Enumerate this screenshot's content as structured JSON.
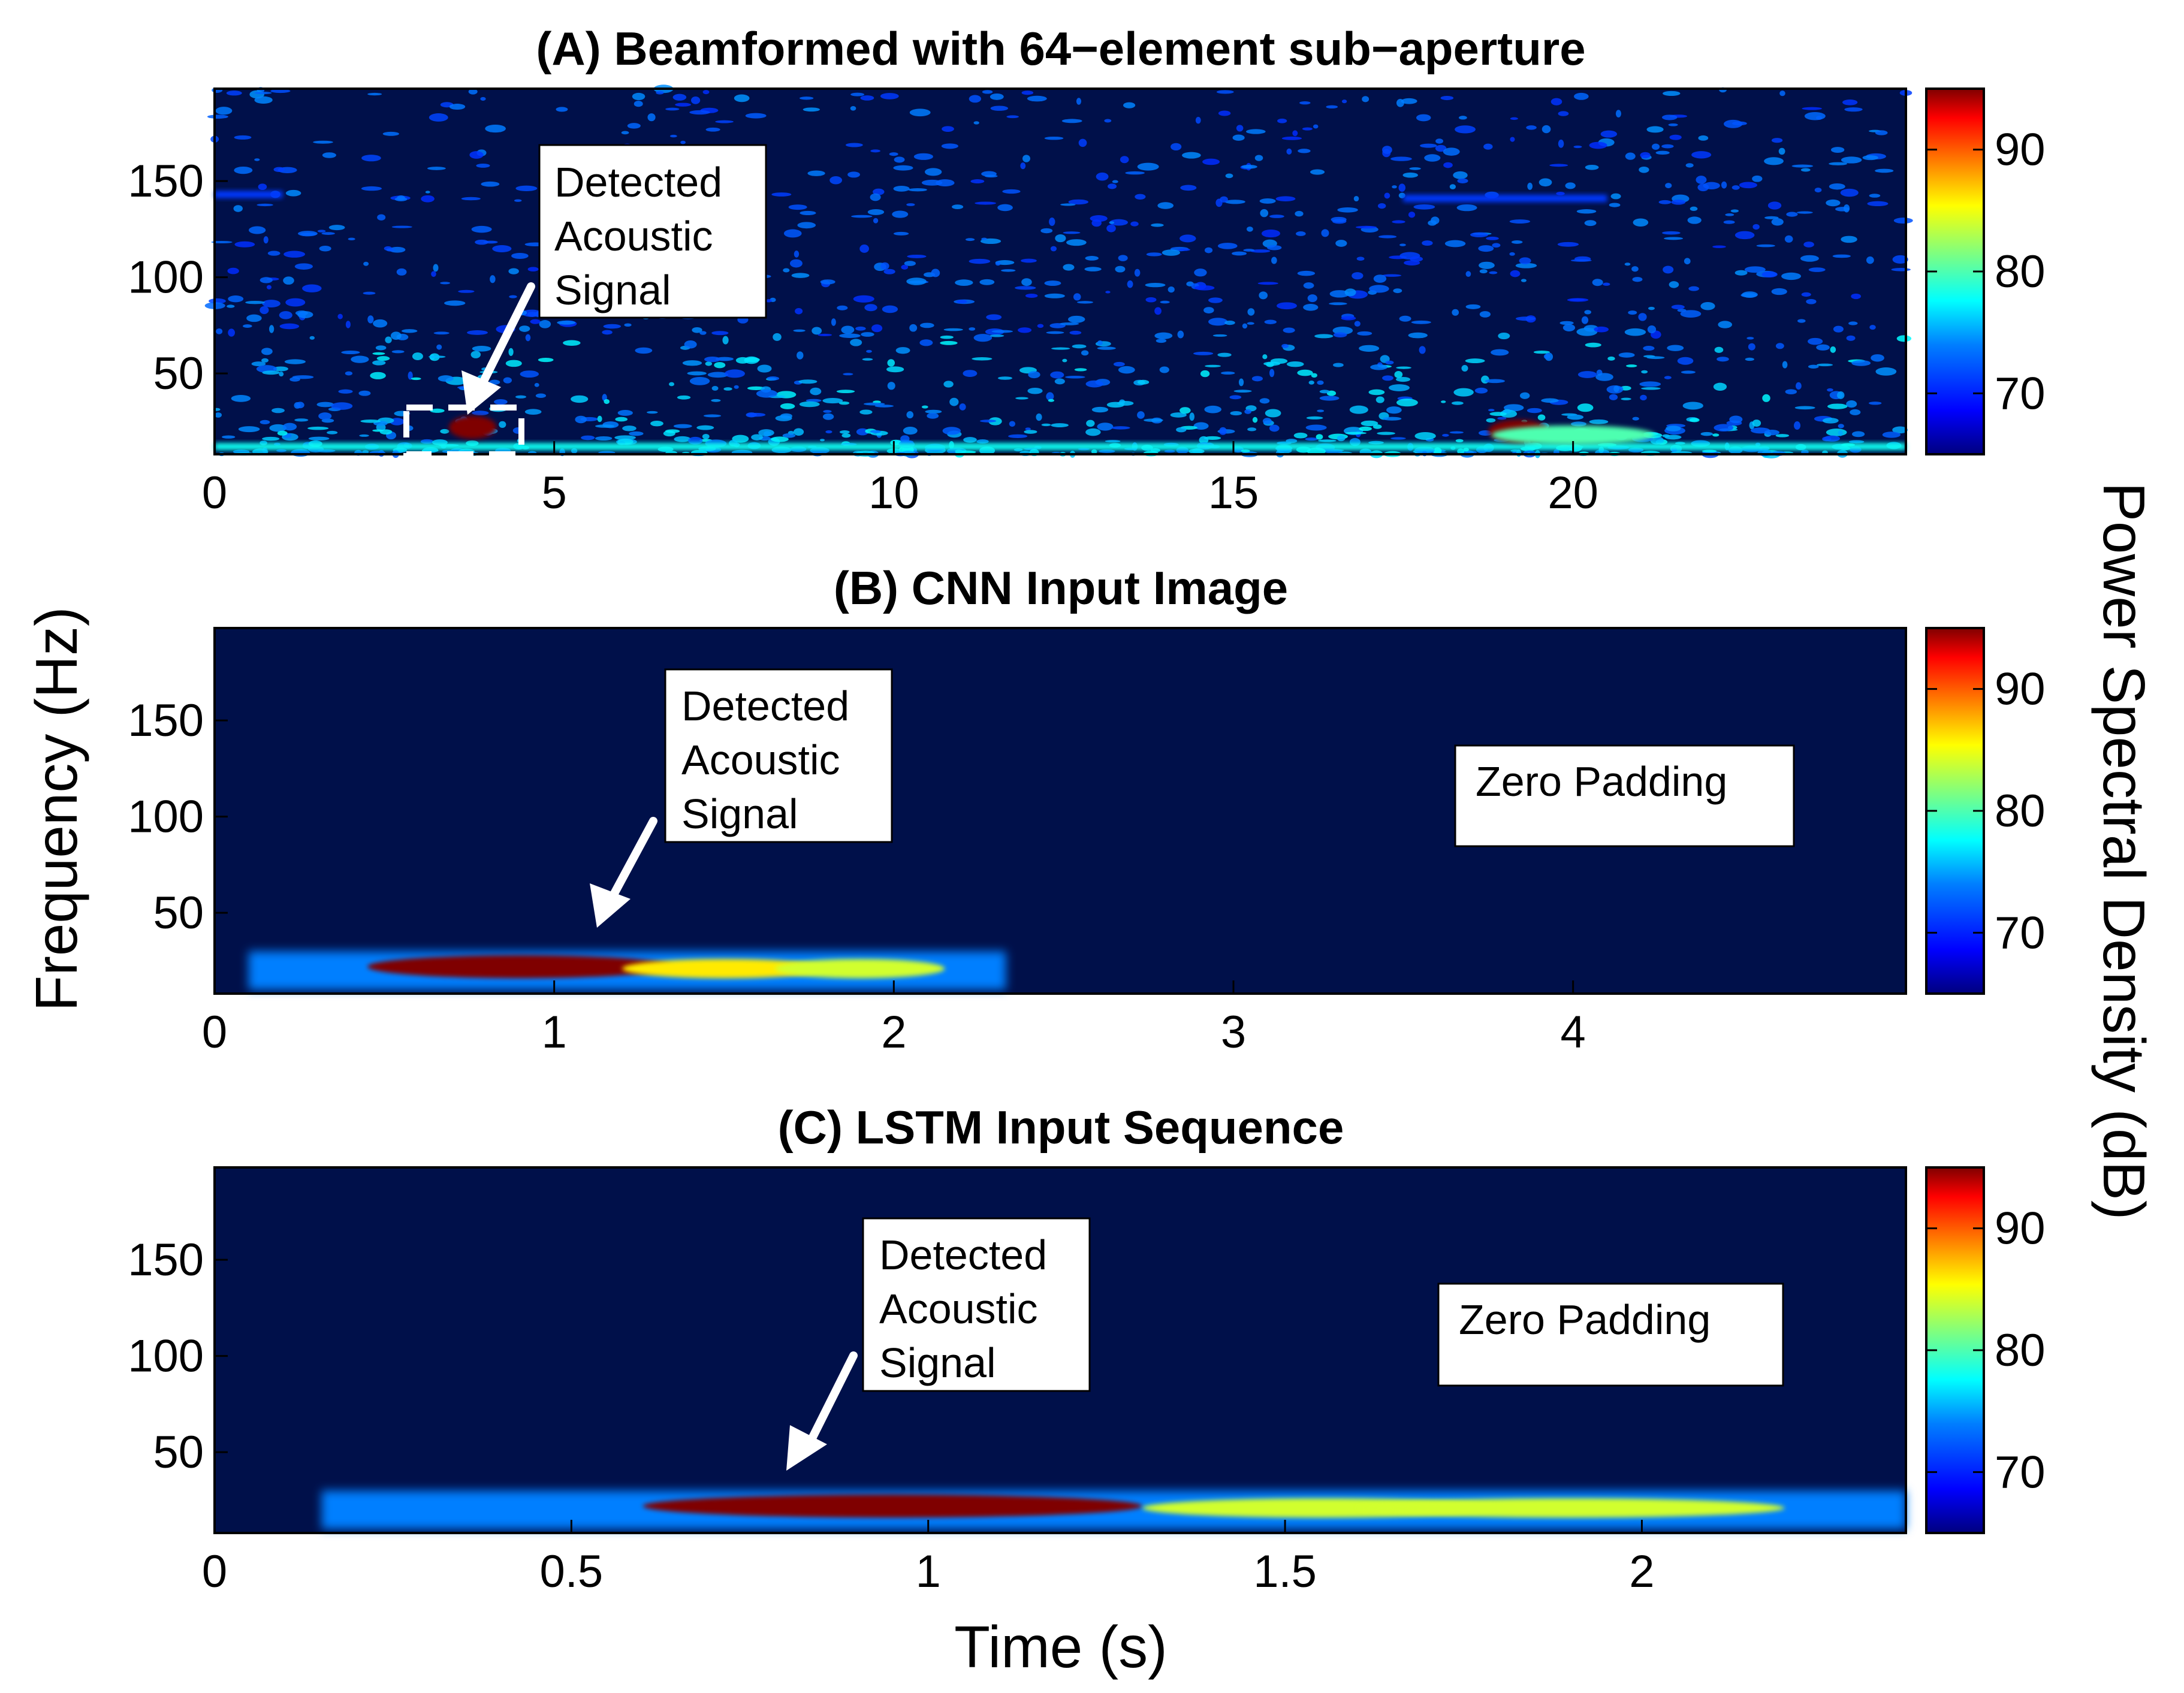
{
  "figure": {
    "ylabel": "Frequency (Hz)",
    "xlabel": "Time (s)",
    "colorbar_label": "Power Spectral Density (dB)",
    "colors": {
      "background": "#00104a",
      "annotation_bg": "#ffffff",
      "arrow": "#ffffff",
      "jet_stops": [
        "#00007f",
        "#0000ff",
        "#007fff",
        "#00ffff",
        "#7fff7f",
        "#ffff00",
        "#ff7f00",
        "#ff0000",
        "#7f0000"
      ]
    }
  },
  "chart_data": [
    {
      "type": "heatmap",
      "title": "(A) Beamformed with 64−element sub−aperture",
      "xlim": [
        0,
        24.9
      ],
      "ylim": [
        8,
        198
      ],
      "xticks": [
        "0",
        "5",
        "10",
        "15",
        "20"
      ],
      "xtick_values": [
        0,
        5,
        10,
        15,
        20
      ],
      "yticks": [
        "50",
        "100",
        "150"
      ],
      "ytick_values": [
        50,
        100,
        150
      ],
      "colorbar": {
        "range": [
          65,
          95
        ],
        "ticks": [
          "70",
          "80",
          "90"
        ],
        "tick_values": [
          70,
          80,
          90
        ]
      },
      "blobs": [
        {
          "t": 3.8,
          "f": 22,
          "dt": 0.35,
          "df": 6,
          "db": 95
        },
        {
          "t": 19.2,
          "f": 20,
          "dt": 0.45,
          "df": 6,
          "db": 95
        },
        {
          "t": 20.0,
          "f": 18,
          "dt": 1.2,
          "df": 5,
          "db": 80
        }
      ],
      "lines": [
        {
          "t0": 0,
          "t1": 24.9,
          "f": 12,
          "db": 78
        },
        {
          "t0": 0,
          "t1": 1.0,
          "f": 143,
          "db": 71
        },
        {
          "t0": 17.5,
          "t1": 20.5,
          "f": 141,
          "db": 71
        }
      ],
      "annotations": [
        {
          "text": [
            "Detected",
            "Acoustic",
            "Signal"
          ]
        }
      ]
    },
    {
      "type": "heatmap",
      "title": "(B) CNN Input Image",
      "xlim": [
        0,
        4.98
      ],
      "ylim": [
        8,
        198
      ],
      "xticks": [
        "0",
        "1",
        "2",
        "3",
        "4"
      ],
      "xtick_values": [
        0,
        1,
        2,
        3,
        4
      ],
      "yticks": [
        "50",
        "100",
        "150"
      ],
      "ytick_values": [
        50,
        100,
        150
      ],
      "colorbar": {
        "range": [
          65,
          95
        ],
        "ticks": [
          "70",
          "80",
          "90"
        ],
        "tick_values": [
          70,
          80,
          90
        ]
      },
      "signal_end": 2.33,
      "blobs": [
        {
          "t": 0.9,
          "f": 22,
          "dt": 0.45,
          "df": 6,
          "db": 95
        },
        {
          "t": 1.5,
          "f": 21,
          "dt": 0.3,
          "df": 5,
          "db": 86
        },
        {
          "t": 1.9,
          "f": 21,
          "dt": 0.25,
          "df": 5,
          "db": 84
        }
      ],
      "band": {
        "t0": 0.1,
        "t1": 2.33,
        "f0": 10,
        "f1": 30,
        "db": 74
      },
      "annotations": [
        {
          "text": [
            "Detected",
            "Acoustic",
            "Signal"
          ]
        },
        {
          "text": [
            "Zero Padding"
          ]
        }
      ]
    },
    {
      "type": "heatmap",
      "title": "(C) LSTM Input Sequence",
      "xlim": [
        0,
        2.37
      ],
      "ylim": [
        8,
        198
      ],
      "xticks": [
        "0",
        "0.5",
        "1",
        "1.5",
        "2"
      ],
      "xtick_values": [
        0,
        0.5,
        1,
        1.5,
        2
      ],
      "yticks": [
        "50",
        "100",
        "150"
      ],
      "ytick_values": [
        50,
        100,
        150
      ],
      "colorbar": {
        "range": [
          65,
          95
        ],
        "ticks": [
          "70",
          "80",
          "90"
        ],
        "tick_values": [
          70,
          80,
          90
        ]
      },
      "blobs": [
        {
          "t": 0.95,
          "f": 22,
          "dt": 0.35,
          "df": 6,
          "db": 95
        },
        {
          "t": 1.55,
          "f": 21,
          "dt": 0.25,
          "df": 5,
          "db": 84
        },
        {
          "t": 1.9,
          "f": 21,
          "dt": 0.3,
          "df": 5,
          "db": 84
        }
      ],
      "band": {
        "t0": 0.15,
        "t1": 2.37,
        "f0": 10,
        "f1": 30,
        "db": 74
      },
      "annotations": [
        {
          "text": [
            "Detected",
            "Acoustic",
            "Signal"
          ]
        },
        {
          "text": [
            "Zero Padding"
          ]
        }
      ]
    }
  ]
}
